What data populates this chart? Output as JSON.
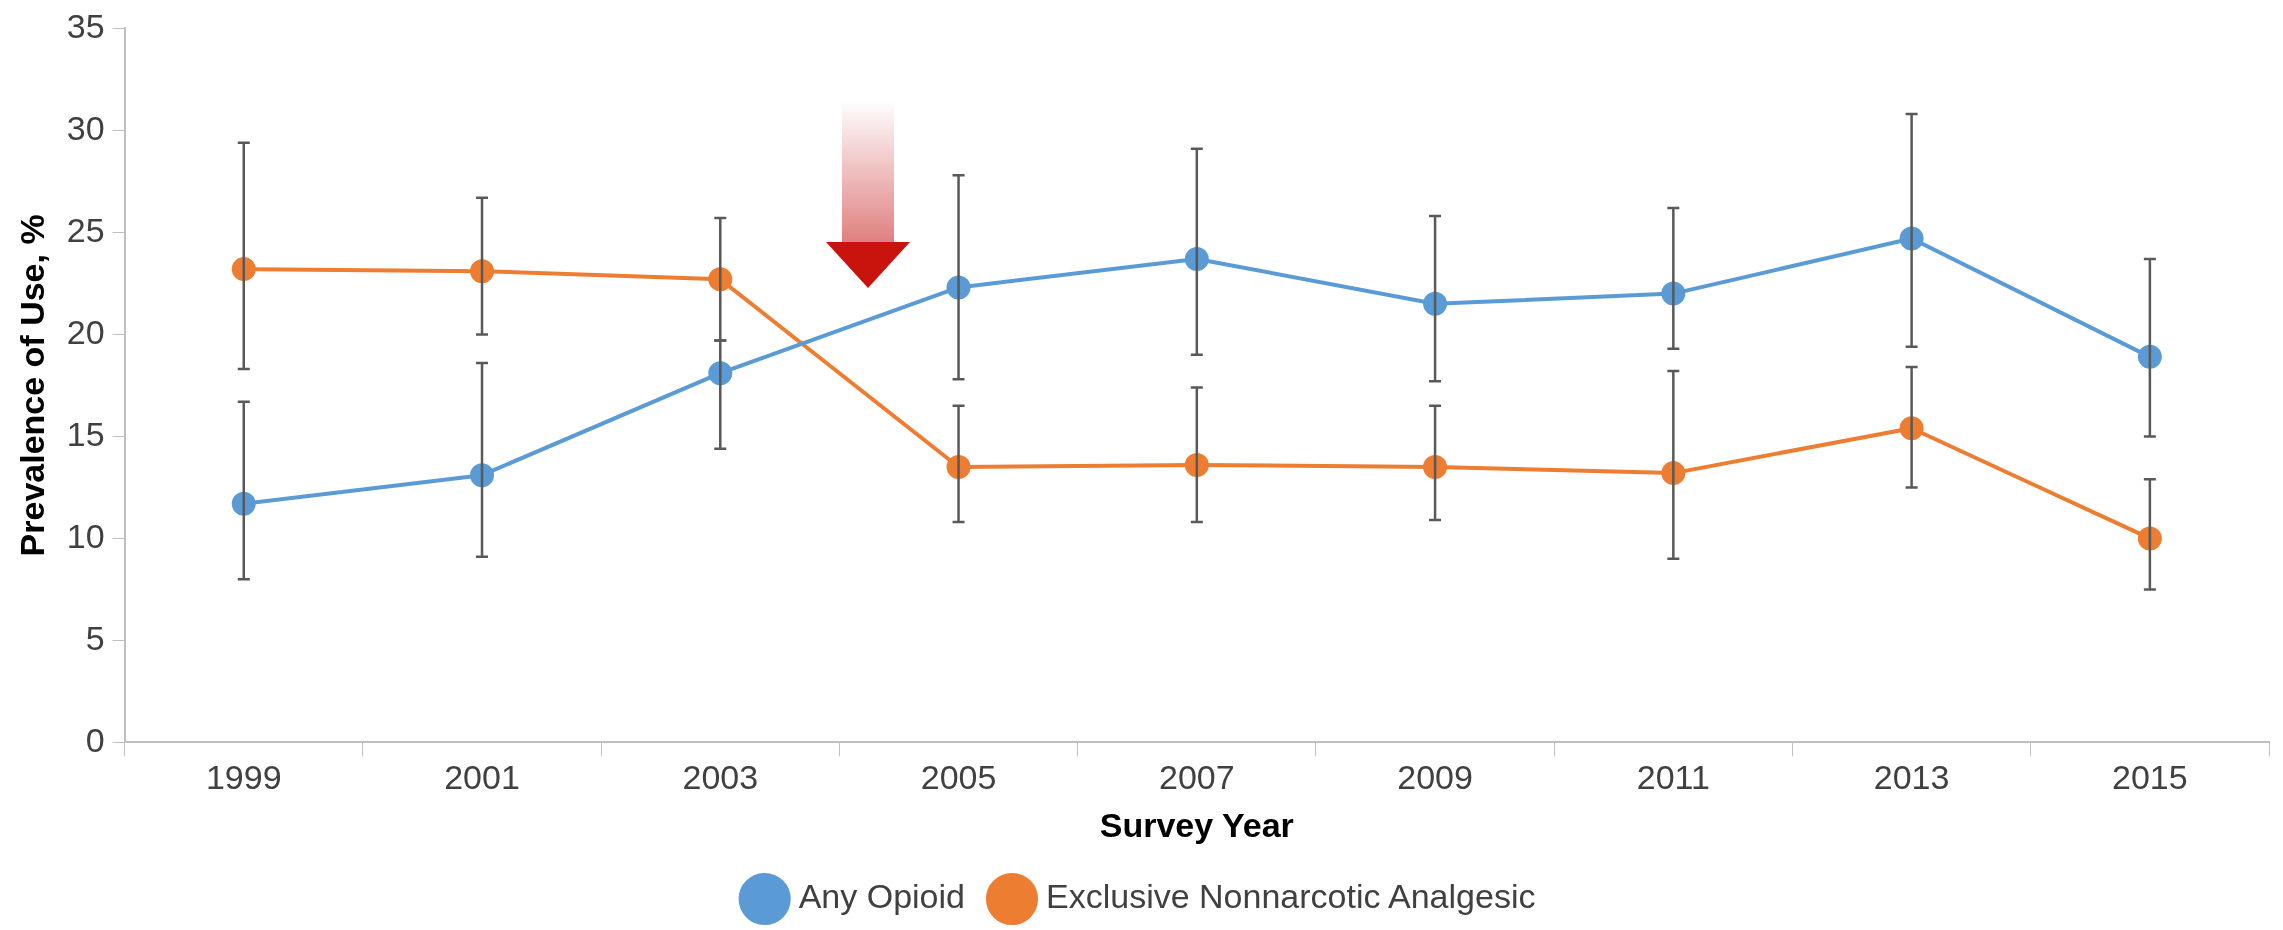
{
  "chart_data": {
    "type": "line",
    "xlabel": "Survey Year",
    "ylabel": "Prevalence of Use, %",
    "categories": [
      "1999",
      "2001",
      "2003",
      "2005",
      "2007",
      "2009",
      "2011",
      "2013",
      "2015"
    ],
    "series": [
      {
        "name": "Any Opioid",
        "color": "#5b9bd5",
        "values": [
          11.7,
          13.1,
          18.1,
          22.3,
          23.7,
          21.5,
          22.0,
          24.7,
          18.9
        ],
        "errors": [
          [
            8.0,
            16.7
          ],
          [
            9.1,
            18.6
          ],
          [
            14.4,
            19.7
          ],
          [
            17.8,
            27.8
          ],
          [
            19.0,
            29.1
          ],
          [
            17.7,
            25.8
          ],
          [
            19.3,
            26.2
          ],
          [
            19.4,
            30.8
          ],
          [
            15.0,
            23.7
          ]
        ]
      },
      {
        "name": "Exclusive Nonnarcotic Analgesic",
        "color": "#ed7d31",
        "values": [
          23.2,
          23.1,
          22.7,
          13.5,
          13.6,
          13.5,
          13.2,
          15.4,
          10.0
        ],
        "errors": [
          [
            18.3,
            29.4
          ],
          [
            20.0,
            26.7
          ],
          [
            19.7,
            25.7
          ],
          [
            10.8,
            16.5
          ],
          [
            10.8,
            17.4
          ],
          [
            10.9,
            16.5
          ],
          [
            9.0,
            18.2
          ],
          [
            12.5,
            18.4
          ],
          [
            7.5,
            12.9
          ]
        ]
      }
    ],
    "ylim": [
      0,
      35
    ],
    "yticks": [
      0,
      5,
      10,
      15,
      20,
      25,
      30,
      35
    ],
    "grid": false,
    "legend": "bottom",
    "marker": "circle",
    "line_style": "solid"
  }
}
